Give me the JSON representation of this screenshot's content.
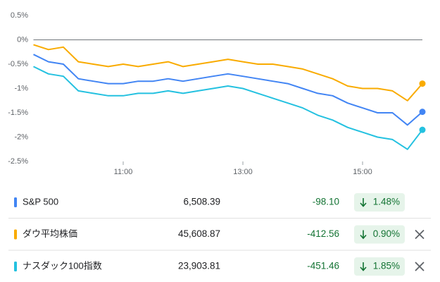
{
  "chart_data": {
    "type": "line",
    "x": [
      9.5,
      9.75,
      10,
      10.25,
      10.5,
      10.75,
      11,
      11.25,
      11.5,
      11.75,
      12,
      12.25,
      12.5,
      12.75,
      13,
      13.25,
      13.5,
      13.75,
      14,
      14.25,
      14.5,
      14.75,
      15,
      15.25,
      15.5,
      15.75,
      16
    ],
    "xlim": [
      9.5,
      16
    ],
    "xticks": [
      {
        "value": 11,
        "label": "11:00"
      },
      {
        "value": 13,
        "label": "13:00"
      },
      {
        "value": 15,
        "label": "15:00"
      }
    ],
    "ylim": [
      -2.5,
      0.5
    ],
    "yticks": [
      {
        "value": 0.5,
        "label": "0.5%"
      },
      {
        "value": 0,
        "label": "0%"
      },
      {
        "value": -0.5,
        "label": "-0.5%"
      },
      {
        "value": -1,
        "label": "-1%"
      },
      {
        "value": -1.5,
        "label": "-1.5%"
      },
      {
        "value": -2,
        "label": "-2%"
      },
      {
        "value": -2.5,
        "label": "-2.5%"
      }
    ],
    "zero_line": true,
    "series": [
      {
        "name": "S&P 500",
        "color": "#4285f4",
        "price": "6,508.39",
        "change": "-98.10",
        "change_percent": "1.48%",
        "removable": false,
        "values": [
          -0.3,
          -0.45,
          -0.5,
          -0.8,
          -0.85,
          -0.9,
          -0.9,
          -0.85,
          -0.85,
          -0.8,
          -0.85,
          -0.8,
          -0.75,
          -0.7,
          -0.75,
          -0.8,
          -0.85,
          -0.9,
          -1.0,
          -1.1,
          -1.15,
          -1.3,
          -1.4,
          -1.5,
          -1.5,
          -1.75,
          -1.48
        ]
      },
      {
        "name": "ダウ平均株価",
        "color": "#f9ab00",
        "price": "45,608.87",
        "change": "-412.56",
        "change_percent": "0.90%",
        "removable": true,
        "values": [
          -0.1,
          -0.2,
          -0.15,
          -0.45,
          -0.5,
          -0.55,
          -0.5,
          -0.55,
          -0.5,
          -0.45,
          -0.55,
          -0.5,
          -0.45,
          -0.4,
          -0.45,
          -0.5,
          -0.5,
          -0.55,
          -0.6,
          -0.7,
          -0.8,
          -0.95,
          -1.0,
          -1.0,
          -1.05,
          -1.25,
          -0.9
        ]
      },
      {
        "name": "ナスダック100指数",
        "color": "#24c1e0",
        "price": "23,903.81",
        "change": "-451.46",
        "change_percent": "1.85%",
        "removable": true,
        "values": [
          -0.55,
          -0.7,
          -0.75,
          -1.05,
          -1.1,
          -1.15,
          -1.15,
          -1.1,
          -1.1,
          -1.05,
          -1.1,
          -1.05,
          -1.0,
          -0.95,
          -1.0,
          -1.1,
          -1.2,
          -1.3,
          -1.4,
          -1.55,
          -1.65,
          -1.8,
          -1.9,
          -2.0,
          -2.05,
          -2.25,
          -1.85
        ]
      }
    ]
  }
}
